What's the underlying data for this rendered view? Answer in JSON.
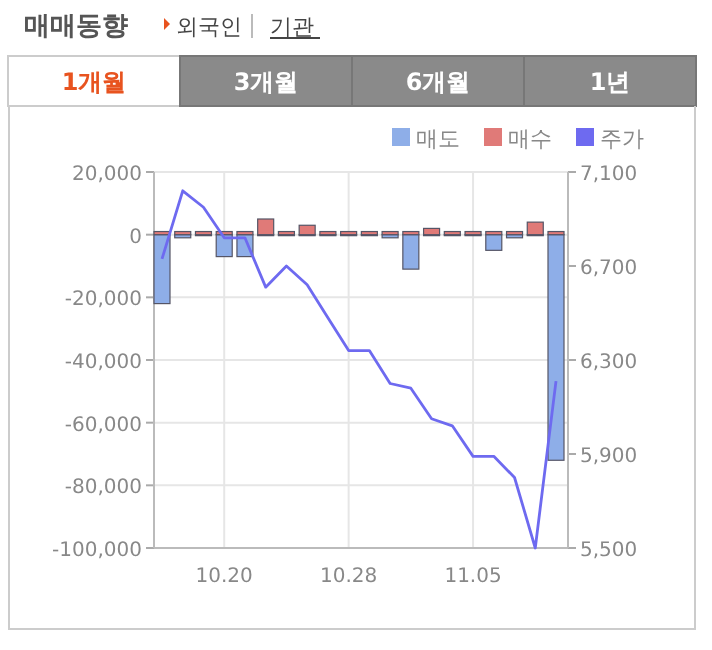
{
  "chart_data": {
    "type": "bar",
    "title": "매매동향",
    "annotations": [
      "외국인",
      "기관",
      "1개월",
      "3개월",
      "6개월",
      "1년"
    ],
    "categories": [
      null,
      null,
      null,
      "10.20",
      null,
      null,
      null,
      null,
      null,
      "10.28",
      null,
      null,
      null,
      null,
      null,
      "11.05",
      null,
      null,
      null,
      null
    ],
    "series": [
      {
        "name": "매도",
        "color": "#8eaee8",
        "values": [
          -22000,
          -1000,
          0,
          -7000,
          -7000,
          0,
          0,
          0,
          0,
          0,
          0,
          -1000,
          -11000,
          0,
          0,
          0,
          -5000,
          -1000,
          0,
          -72000
        ]
      },
      {
        "name": "매수",
        "color": "#e07a78",
        "values": [
          1000,
          1000,
          1000,
          1000,
          1000,
          5000,
          1000,
          3000,
          1000,
          1000,
          1000,
          1000,
          1000,
          2000,
          1000,
          1000,
          1000,
          1000,
          4000,
          1000
        ]
      },
      {
        "name": "주가",
        "type": "line",
        "axis": "y2",
        "color": "#6e6af0",
        "values": [
          6730,
          7020,
          6950,
          6820,
          6820,
          6610,
          6700,
          6620,
          6480,
          6340,
          6340,
          6200,
          6180,
          6050,
          6020,
          5890,
          5890,
          5800,
          5500,
          6210
        ]
      }
    ],
    "ylim": [
      -100000,
      20000
    ],
    "yticks": [
      {
        "value": 20000,
        "label": "20,000"
      },
      0,
      {
        "value": -20000,
        "label": "-20,000"
      },
      {
        "value": -40000,
        "label": "-40,000"
      },
      {
        "value": -60000,
        "label": "-60,000"
      },
      {
        "value": -80000,
        "label": "-80,000"
      },
      {
        "value": -100000,
        "label": "-100,000"
      }
    ],
    "y2lim": [
      5500,
      7100
    ],
    "y2ticks": [
      {
        "value": 5500,
        "label": "5,500"
      },
      {
        "value": 5900,
        "label": "5,900"
      },
      {
        "value": 6300,
        "label": "6,300"
      },
      {
        "value": 6700,
        "label": "6,700"
      },
      {
        "value": 7100,
        "label": "7,100"
      }
    ],
    "grid": true,
    "legend": "top right"
  }
}
